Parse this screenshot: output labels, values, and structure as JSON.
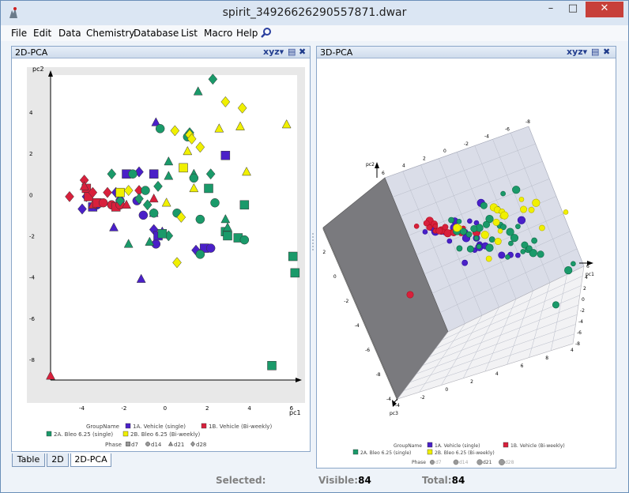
{
  "window": {
    "title": "spirit_34926626290557871.dwar"
  },
  "menu": [
    "File",
    "Edit",
    "Data",
    "Chemistry",
    "Database",
    "List",
    "Macro",
    "Help"
  ],
  "left_panel": {
    "title": "2D-PCA",
    "ctrl_label": "xyz",
    "axes": {
      "xlabel": "pc1",
      "ylabel": "pc2",
      "xticks": [
        "-4",
        "-2",
        "0",
        "2",
        "4",
        "6"
      ],
      "yticks": [
        "4",
        "2",
        "0",
        "-2",
        "-4",
        "-6",
        "-8"
      ]
    }
  },
  "right_panel": {
    "title": "3D-PCA",
    "ctrl_label": "xyz",
    "axes": {
      "xlabel": "pc1",
      "ylabel": "pc2",
      "zlabel": "pc3"
    }
  },
  "legend": {
    "group_title": "GroupName",
    "groups": [
      {
        "label": "1A. Vehicle (single)",
        "color": "#4a20c8"
      },
      {
        "label": "1B. Vehicle (Bi-weekly)",
        "color": "#d8203c"
      },
      {
        "label": "2A. Bleo 6.25 (single)",
        "color": "#1a9a6a"
      },
      {
        "label": "2B. Bleo 6.25 (Bi-weekly)",
        "color": "#f0f000"
      }
    ],
    "phase_title": "Phase",
    "phases": [
      "d7",
      "d14",
      "d21",
      "d28"
    ]
  },
  "chart_data": [
    {
      "type": "scatter",
      "xlabel": "pc1",
      "ylabel": "pc2",
      "xlim": [
        -5.5,
        6.2
      ],
      "ylim": [
        -9,
        5.8
      ],
      "series": [
        {
          "name": "1A. Vehicle (single)",
          "color": "#4a20c8",
          "points": [
            [
              -4.0,
              -0.7,
              "d"
            ],
            [
              -3.5,
              -0.6,
              "s"
            ],
            [
              -3.3,
              -0.5,
              "c"
            ],
            [
              -2.6,
              -0.5,
              "c"
            ],
            [
              -2.5,
              -1.6,
              "t"
            ],
            [
              -2.4,
              0.1,
              "d"
            ],
            [
              -1.9,
              1.0,
              "s"
            ],
            [
              -1.4,
              -0.3,
              "c"
            ],
            [
              -1.3,
              1.1,
              "d"
            ],
            [
              -1.1,
              -1.0,
              "c"
            ],
            [
              -0.6,
              -0.9,
              "t"
            ],
            [
              -0.6,
              -1.7,
              "d"
            ],
            [
              -0.5,
              -2.4,
              "c"
            ],
            [
              -0.4,
              -2.0,
              "s"
            ],
            [
              -0.2,
              -1.8,
              "t"
            ],
            [
              -1.2,
              -4.1,
              "t"
            ],
            [
              -0.6,
              1.0,
              "s"
            ],
            [
              -0.5,
              3.5,
              "t"
            ],
            [
              1.4,
              -2.7,
              "d"
            ],
            [
              1.8,
              -2.6,
              "s"
            ],
            [
              2.1,
              -2.6,
              "c"
            ],
            [
              2.8,
              1.9,
              "s"
            ],
            [
              -3.8,
              -0.1,
              "d"
            ],
            [
              -2.2,
              -0.3,
              "c"
            ]
          ]
        },
        {
          "name": "1B. Vehicle (Bi-weekly)",
          "color": "#d8203c",
          "points": [
            [
              -4.6,
              -0.1,
              "d"
            ],
            [
              -3.9,
              0.7,
              "d"
            ],
            [
              -3.8,
              0.3,
              "s"
            ],
            [
              -3.7,
              -0.1,
              "s"
            ],
            [
              -3.5,
              -0.5,
              "t"
            ],
            [
              -3.3,
              -0.4,
              "s"
            ],
            [
              -3.0,
              -0.4,
              "c"
            ],
            [
              -2.8,
              0.1,
              "d"
            ],
            [
              -2.6,
              -0.5,
              "c"
            ],
            [
              -2.4,
              -0.6,
              "s"
            ],
            [
              -2.2,
              -0.5,
              "c"
            ],
            [
              -1.9,
              -0.5,
              "t"
            ],
            [
              -1.3,
              0.2,
              "d"
            ],
            [
              -0.6,
              -0.2,
              "t"
            ],
            [
              -5.5,
              -8.8,
              "t"
            ],
            [
              -3.9,
              0.4,
              "t"
            ],
            [
              -3.5,
              0.1,
              "d"
            ]
          ]
        },
        {
          "name": "2A. Bleo 6.25 (single)",
          "color": "#1a9a6a",
          "points": [
            [
              1.5,
              5.0,
              "t"
            ],
            [
              2.2,
              5.6,
              "d"
            ],
            [
              -0.3,
              3.2,
              "c"
            ],
            [
              1.1,
              3.0,
              "d"
            ],
            [
              1.0,
              2.8,
              "c"
            ],
            [
              0.1,
              1.6,
              "t"
            ],
            [
              1.3,
              1.0,
              "t"
            ],
            [
              1.3,
              0.8,
              "c"
            ],
            [
              2.1,
              1.0,
              "d"
            ],
            [
              2.0,
              0.3,
              "s"
            ],
            [
              0.1,
              0.9,
              "t"
            ],
            [
              -2.6,
              1.0,
              "d"
            ],
            [
              -1.6,
              1.0,
              "c"
            ],
            [
              -0.4,
              0.4,
              "d"
            ],
            [
              -1.0,
              0.2,
              "c"
            ],
            [
              -0.9,
              -0.5,
              "d"
            ],
            [
              -0.6,
              -0.9,
              "c"
            ],
            [
              -2.2,
              -0.3,
              "d"
            ],
            [
              -1.3,
              -0.2,
              "d"
            ],
            [
              0.5,
              -0.9,
              "c"
            ],
            [
              1.6,
              -1.2,
              "c"
            ],
            [
              2.3,
              -0.4,
              "c"
            ],
            [
              2.8,
              -1.2,
              "t"
            ],
            [
              2.8,
              -1.8,
              "s"
            ],
            [
              2.9,
              -2.0,
              "s"
            ],
            [
              3.4,
              -2.1,
              "s"
            ],
            [
              3.7,
              -2.2,
              "c"
            ],
            [
              3.7,
              -0.5,
              "s"
            ],
            [
              1.6,
              -2.9,
              "c"
            ],
            [
              0.1,
              -2.0,
              "d"
            ],
            [
              -0.8,
              -2.3,
              "t"
            ],
            [
              -1.8,
              -2.4,
              "t"
            ],
            [
              6.0,
              -3.0,
              "s"
            ],
            [
              6.1,
              -3.8,
              "s"
            ],
            [
              5.0,
              -8.3,
              "s"
            ],
            [
              2.9,
              -1.6,
              "t"
            ],
            [
              -0.2,
              -1.9,
              "s"
            ]
          ]
        },
        {
          "name": "2B. Bleo 6.25 (Bi-weekly)",
          "color": "#f0f000",
          "points": [
            [
              2.8,
              4.5,
              "d"
            ],
            [
              3.6,
              4.2,
              "d"
            ],
            [
              2.5,
              3.2,
              "t"
            ],
            [
              3.5,
              3.3,
              "t"
            ],
            [
              5.7,
              3.4,
              "t"
            ],
            [
              0.4,
              3.1,
              "d"
            ],
            [
              1.1,
              2.9,
              "d"
            ],
            [
              1.2,
              2.7,
              "d"
            ],
            [
              1.0,
              2.1,
              "t"
            ],
            [
              1.6,
              2.3,
              "d"
            ],
            [
              0.8,
              1.3,
              "s"
            ],
            [
              3.8,
              1.1,
              "t"
            ],
            [
              1.3,
              0.3,
              "t"
            ],
            [
              0.0,
              -0.4,
              "t"
            ],
            [
              0.7,
              -1.1,
              "d"
            ],
            [
              0.5,
              -3.3,
              "d"
            ],
            [
              -1.8,
              0.2,
              "d"
            ],
            [
              -2.2,
              0.1,
              "s"
            ]
          ]
        }
      ]
    },
    {
      "type": "scatter",
      "note": "3D scatter rendered in perspective view",
      "xlabel": "pc1",
      "ylabel": "pc2",
      "zlabel": "pc3"
    }
  ]
}
